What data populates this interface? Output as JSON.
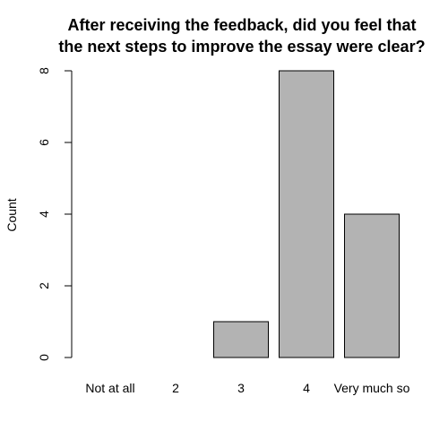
{
  "chart_data": {
    "type": "bar",
    "title": "After receiving the feedback, did you feel that the next steps to improve the essay were clear?",
    "title_lines": [
      "After receiving the feedback, did you feel that",
      "the next steps to improve the essay were clear?"
    ],
    "categories": [
      "Not at all",
      "2",
      "3",
      "4",
      "Very much so"
    ],
    "values": [
      0,
      0,
      1,
      8,
      4
    ],
    "xlabel": "",
    "ylabel": "Count",
    "ylim": [
      0,
      8
    ],
    "yticks": [
      "0",
      "2",
      "4",
      "6",
      "8"
    ],
    "grid": false,
    "legend": "none",
    "bar_color": "#b3b3b3"
  }
}
